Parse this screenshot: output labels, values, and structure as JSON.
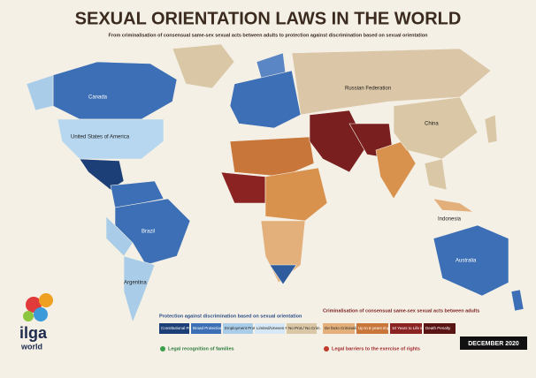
{
  "header": {
    "title": "SEXUAL ORIENTATION LAWS IN THE WORLD",
    "subtitle": "From criminalisation of consensual same-sex sexual acts between adults to protection against discrimination based on sexual orientation"
  },
  "labels": [
    "Canada",
    "United States of America",
    "Russian Federation",
    "China",
    "Brazil",
    "Argentina",
    "Australia",
    "Indonesia"
  ],
  "legend": {
    "protection": {
      "title": "Protection against discrimination based on sexual orientation",
      "items": [
        "Constitutional Protection",
        "Broad Protection",
        "Employment Protection",
        "Limited/Uneven Protection",
        "No Prot./ No Crim."
      ]
    },
    "criminalisation": {
      "title": "Criminalisation of consensual same-sex sexual acts between adults",
      "items": [
        "De facto Criminalisation",
        "Up to 8 years imprisonment",
        "10 Years to Life in Prison",
        "Death Penalty"
      ]
    },
    "families": {
      "title": "Legal recognition of families"
    },
    "barriers": {
      "title": "Legal barriers to the exercise of rights"
    }
  },
  "date": "DECEMBER 2020",
  "logo": {
    "name": "ilga",
    "sub": "world"
  }
}
